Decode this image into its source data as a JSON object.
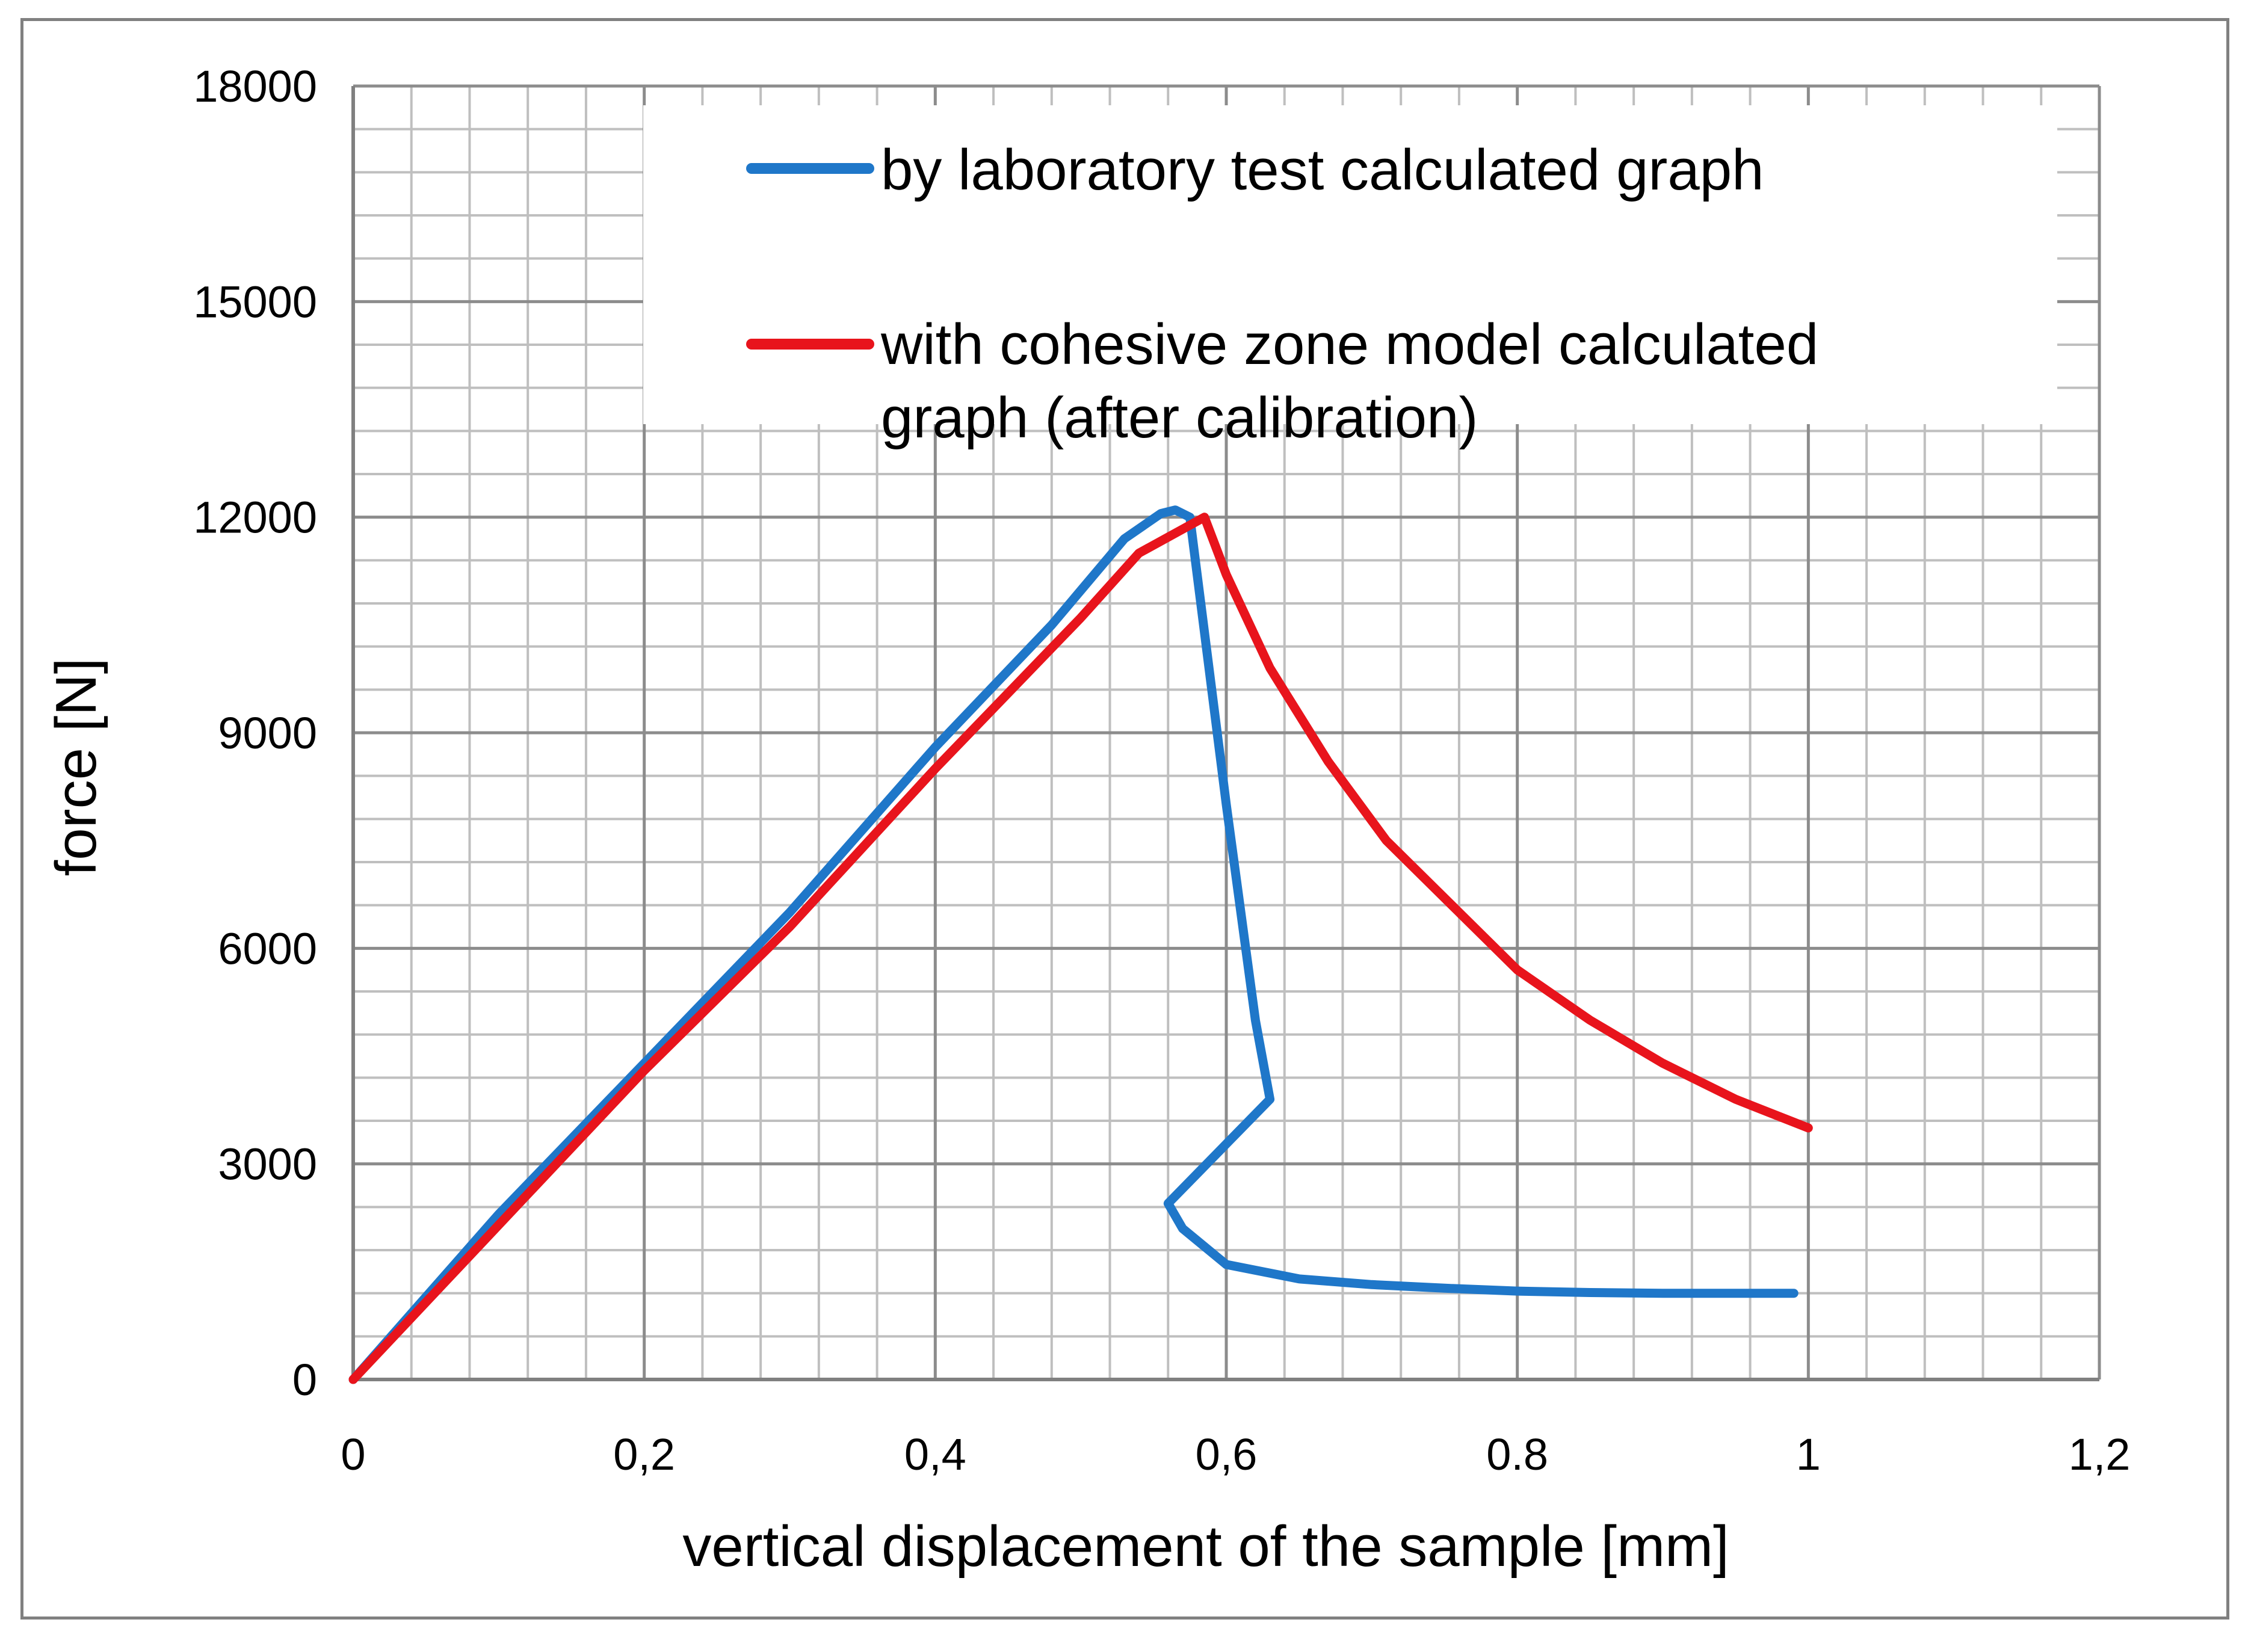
{
  "chart_data": {
    "type": "line",
    "title": "",
    "xlabel": "vertical displacement of the sample [mm]",
    "ylabel": "force [N]",
    "xlim": [
      0,
      1.2
    ],
    "ylim": [
      0,
      18000
    ],
    "x_ticks": [
      0,
      0.2,
      0.4,
      0.6,
      0.8,
      1,
      1.2
    ],
    "x_tick_labels": [
      "0",
      "0,2",
      "0,4",
      "0,6",
      "0.8",
      "1",
      "1,2"
    ],
    "y_ticks": [
      0,
      3000,
      6000,
      9000,
      12000,
      15000,
      18000
    ],
    "y_tick_labels": [
      "0",
      "3000",
      "6000",
      "9000",
      "12000",
      "15000",
      "18000"
    ],
    "grid": true,
    "legend_position": "top-right",
    "series": [
      {
        "name": "by laboratory test calculated graph",
        "color": "#1f77c9",
        "x": [
          0,
          0.1,
          0.2,
          0.3,
          0.4,
          0.48,
          0.53,
          0.555,
          0.565,
          0.575,
          0.6,
          0.62,
          0.63,
          0.56,
          0.57,
          0.6,
          0.65,
          0.7,
          0.75,
          0.8,
          0.85,
          0.9,
          0.95,
          0.99
        ],
        "y": [
          0,
          2300,
          4400,
          6500,
          8800,
          10500,
          11700,
          12050,
          12100,
          12000,
          8000,
          5000,
          3900,
          2450,
          2100,
          1600,
          1400,
          1320,
          1270,
          1230,
          1210,
          1200,
          1200,
          1200
        ]
      },
      {
        "name": "with cohesive zone model calculated graph (after calibration)",
        "color": "#e8141c",
        "x": [
          0,
          0.1,
          0.2,
          0.3,
          0.4,
          0.5,
          0.54,
          0.585,
          0.6,
          0.63,
          0.67,
          0.71,
          0.76,
          0.8,
          0.85,
          0.9,
          0.95,
          1.0
        ],
        "y": [
          0,
          2150,
          4300,
          6300,
          8500,
          10600,
          11500,
          12000,
          11200,
          9900,
          8600,
          7500,
          6500,
          5700,
          5000,
          4400,
          3900,
          3500
        ]
      }
    ]
  }
}
